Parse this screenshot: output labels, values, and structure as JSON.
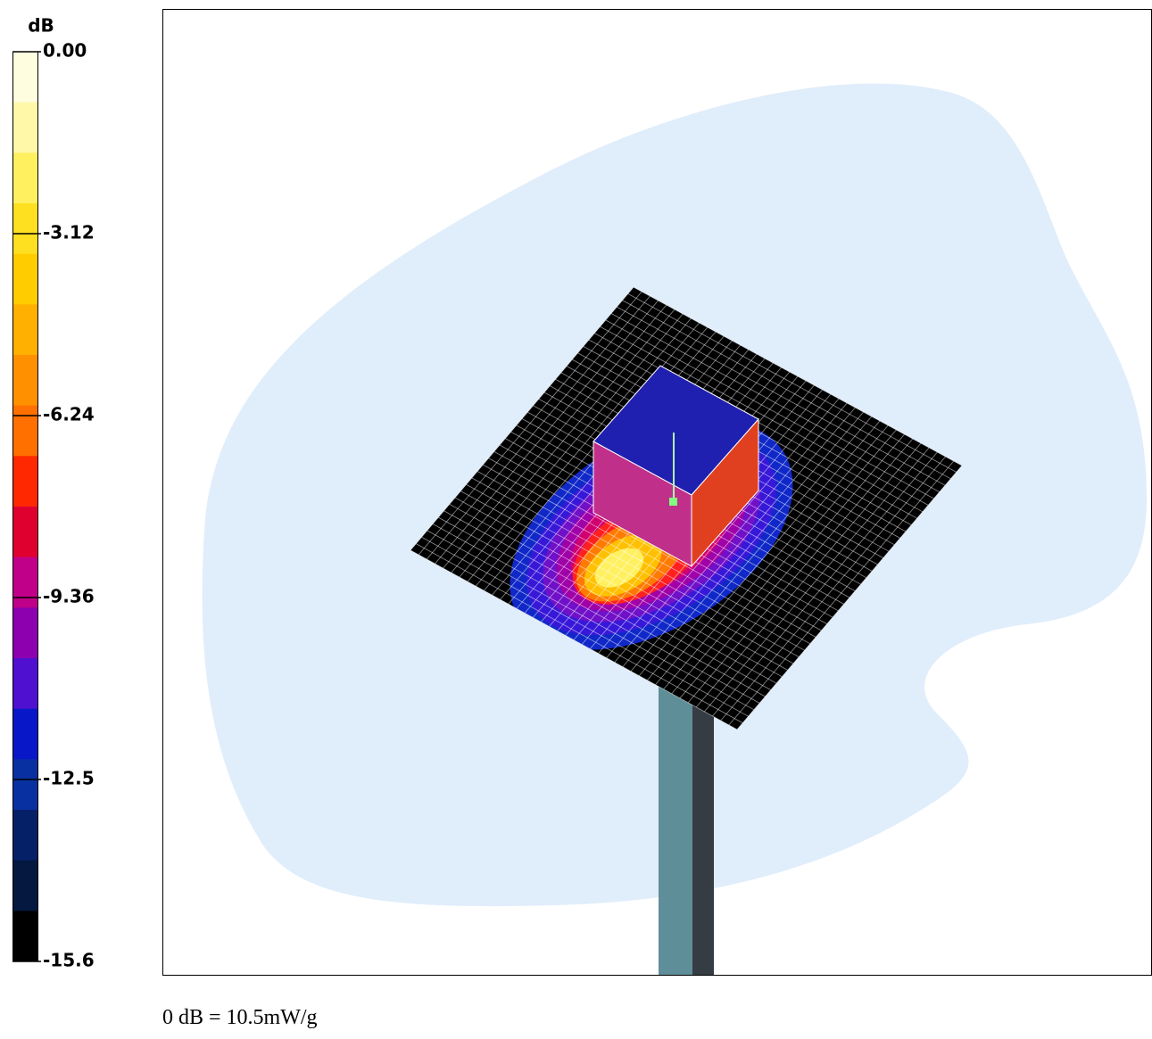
{
  "colorbar": {
    "unit": "dB",
    "ticks": [
      "0.00",
      "-3.12",
      "-6.24",
      "-9.36",
      "-12.5",
      "-15.6"
    ]
  },
  "caption": "0 dB = 10.5mW/g"
}
